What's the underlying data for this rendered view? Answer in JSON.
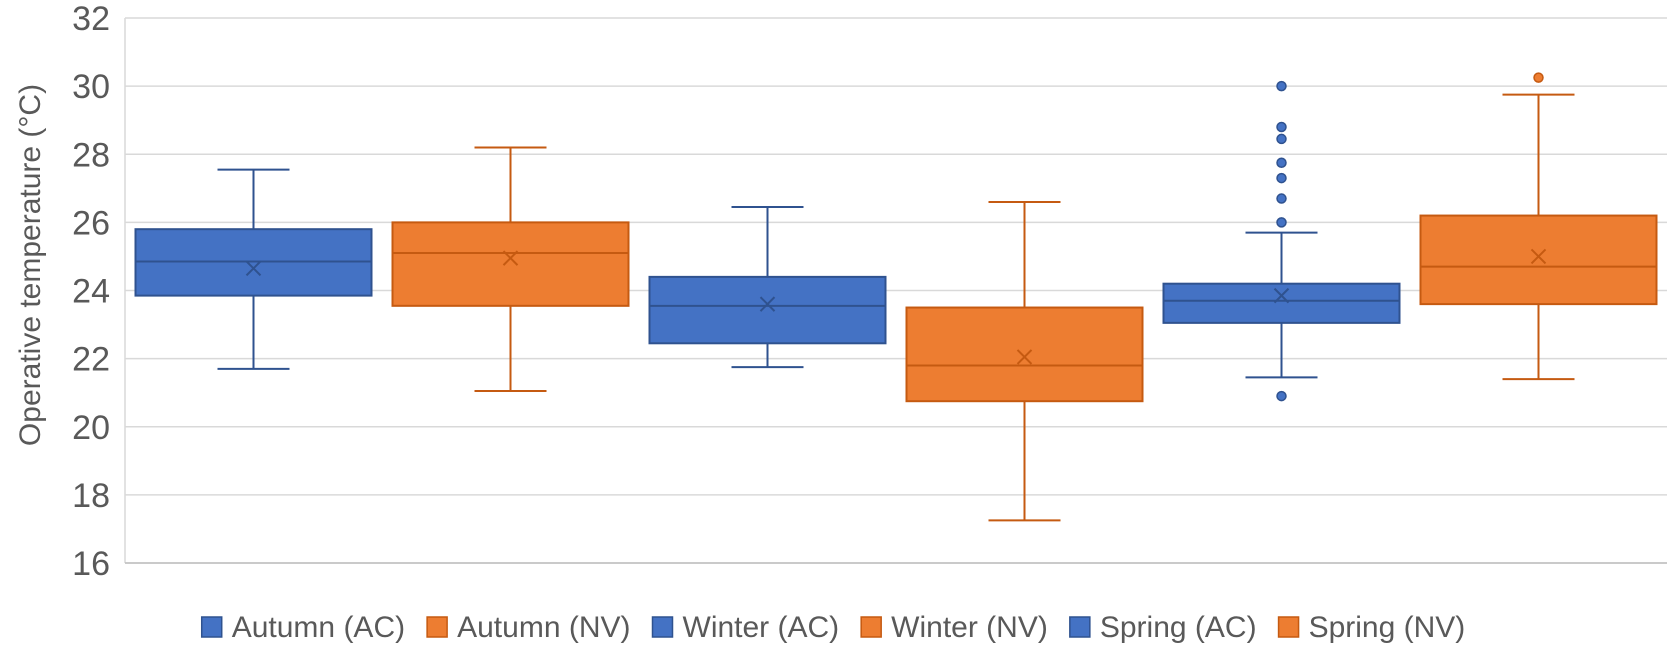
{
  "chart_data": {
    "type": "boxplot",
    "title": "",
    "xlabel": "",
    "ylabel": "Operative temperature (°C)",
    "ylim": [
      16,
      32
    ],
    "yticks": [
      16,
      18,
      20,
      22,
      24,
      26,
      28,
      30,
      32
    ],
    "grid": true,
    "legend_position": "bottom",
    "series": [
      {
        "name": "Autumn (AC)",
        "color": "#4472C4",
        "stroke": "#2F528F",
        "whisker_low": 21.7,
        "q1": 23.85,
        "median": 24.85,
        "q3": 25.8,
        "whisker_high": 27.55,
        "mean": 24.65,
        "outliers": []
      },
      {
        "name": "Autumn (NV)",
        "color": "#ED7D31",
        "stroke": "#C55A11",
        "whisker_low": 21.05,
        "q1": 23.55,
        "median": 25.1,
        "q3": 26.0,
        "whisker_high": 28.2,
        "mean": 24.95,
        "outliers": []
      },
      {
        "name": "Winter (AC)",
        "color": "#4472C4",
        "stroke": "#2F528F",
        "whisker_low": 21.75,
        "q1": 22.45,
        "median": 23.55,
        "q3": 24.4,
        "whisker_high": 26.45,
        "mean": 23.6,
        "outliers": []
      },
      {
        "name": "Winter (NV)",
        "color": "#ED7D31",
        "stroke": "#C55A11",
        "whisker_low": 17.25,
        "q1": 20.75,
        "median": 21.8,
        "q3": 23.5,
        "whisker_high": 26.6,
        "mean": 22.05,
        "outliers": []
      },
      {
        "name": "Spring (AC)",
        "color": "#4472C4",
        "stroke": "#2F528F",
        "whisker_low": 21.45,
        "q1": 23.05,
        "median": 23.7,
        "q3": 24.2,
        "whisker_high": 25.7,
        "mean": 23.85,
        "outliers": [
          20.9,
          26.0,
          26.7,
          27.3,
          27.75,
          28.45,
          28.8,
          30.0
        ]
      },
      {
        "name": "Spring (NV)",
        "color": "#ED7D31",
        "stroke": "#C55A11",
        "whisker_low": 21.4,
        "q1": 23.6,
        "median": 24.7,
        "q3": 26.2,
        "whisker_high": 29.75,
        "mean": 25.0,
        "outliers": [
          30.25
        ]
      }
    ]
  }
}
